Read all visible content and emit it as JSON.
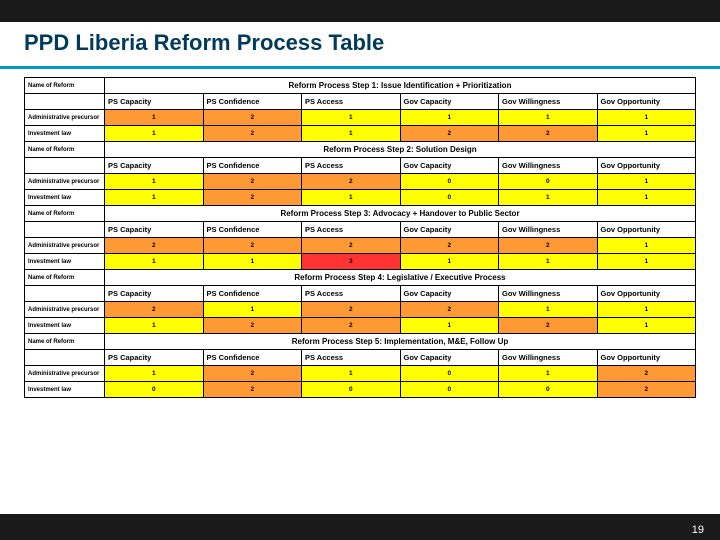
{
  "slide": {
    "title": "PPD Liberia Reform Process Table",
    "page_number": "19"
  },
  "columns": [
    "PS Capacity",
    "PS Confidence",
    "PS Access",
    "Gov Capacity",
    "Gov Willingness",
    "Gov Opportunity"
  ],
  "row_names": [
    "Administrative precursor",
    "Investment law"
  ],
  "name_of_reform_label": "Name of Reform",
  "colors": {
    "yellow": "#ffff00",
    "orange": "#ff9933",
    "red": "#ff3333",
    "title": "#003b5c",
    "accent": "#0099c6",
    "dark": "#1a1a1a"
  },
  "steps": [
    {
      "title": "Reform Process Step 1: Issue Identification + Prioritization",
      "rows": [
        {
          "vals": [
            "1",
            "2",
            "1",
            "1",
            "1",
            "1"
          ],
          "colors": [
            "orange",
            "orange",
            "yellow",
            "yellow",
            "yellow",
            "yellow"
          ]
        },
        {
          "vals": [
            "1",
            "2",
            "1",
            "2",
            "2",
            "1"
          ],
          "colors": [
            "yellow",
            "orange",
            "yellow",
            "orange",
            "orange",
            "yellow"
          ]
        }
      ]
    },
    {
      "title": "Reform Process Step 2: Solution Design",
      "rows": [
        {
          "vals": [
            "1",
            "2",
            "2",
            "0",
            "0",
            "1"
          ],
          "colors": [
            "yellow",
            "orange",
            "orange",
            "yellow",
            "yellow",
            "yellow"
          ]
        },
        {
          "vals": [
            "1",
            "2",
            "1",
            "0",
            "1",
            "1"
          ],
          "colors": [
            "yellow",
            "orange",
            "yellow",
            "yellow",
            "yellow",
            "yellow"
          ]
        }
      ]
    },
    {
      "title": "Reform Process Step 3: Advocacy + Handover to Public Sector",
      "rows": [
        {
          "vals": [
            "2",
            "2",
            "2",
            "2",
            "2",
            "1"
          ],
          "colors": [
            "orange",
            "orange",
            "orange",
            "orange",
            "orange",
            "yellow"
          ]
        },
        {
          "vals": [
            "1",
            "1",
            "3",
            "1",
            "1",
            "1"
          ],
          "colors": [
            "yellow",
            "yellow",
            "red",
            "yellow",
            "yellow",
            "yellow"
          ]
        }
      ]
    },
    {
      "title": "Reform Process Step 4: Legislative / Executive Process",
      "rows": [
        {
          "vals": [
            "2",
            "1",
            "2",
            "2",
            "1",
            "1"
          ],
          "colors": [
            "orange",
            "yellow",
            "orange",
            "orange",
            "yellow",
            "yellow"
          ]
        },
        {
          "vals": [
            "1",
            "2",
            "2",
            "1",
            "2",
            "1"
          ],
          "colors": [
            "yellow",
            "orange",
            "orange",
            "yellow",
            "orange",
            "yellow"
          ]
        }
      ]
    },
    {
      "title": "Reform Process Step 5: Implementation, M&E, Follow Up",
      "rows": [
        {
          "vals": [
            "1",
            "2",
            "1",
            "0",
            "1",
            "2"
          ],
          "colors": [
            "yellow",
            "orange",
            "yellow",
            "yellow",
            "yellow",
            "orange"
          ]
        },
        {
          "vals": [
            "0",
            "2",
            "0",
            "0",
            "0",
            "2"
          ],
          "colors": [
            "yellow",
            "orange",
            "yellow",
            "yellow",
            "yellow",
            "orange"
          ]
        }
      ]
    }
  ]
}
